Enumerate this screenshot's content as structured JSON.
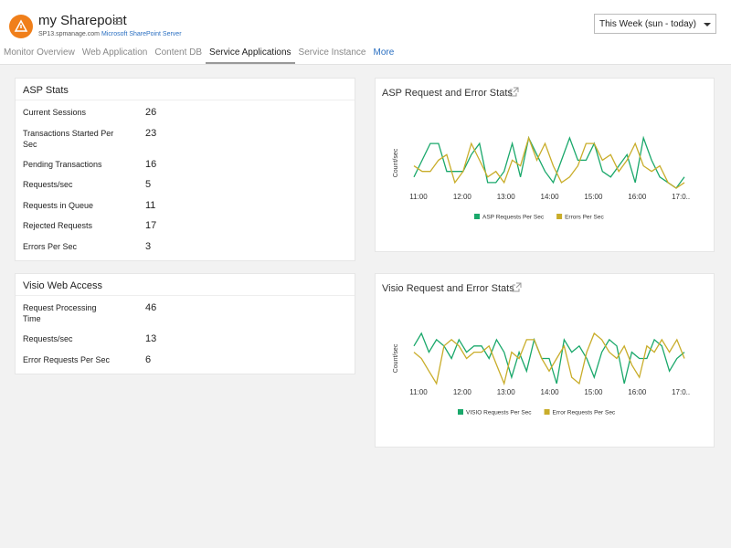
{
  "header": {
    "title": "my Sharepoint",
    "host": "SP13.spmanage.com",
    "server": "Microsoft SharePoint Server",
    "period": "This Week (sun - today)"
  },
  "tabs": [
    "Monitor Overview",
    "Web Application",
    "Content DB",
    "Service Applications",
    "Service Instance",
    "More"
  ],
  "active_tab": 3,
  "panels": [
    {
      "title": "ASP Stats",
      "rows": [
        {
          "label": "Current Sessions",
          "value": 26
        },
        {
          "label": "Transactions Started Per Sec",
          "value": 23
        },
        {
          "label": "Pending Transactions",
          "value": 16
        },
        {
          "label": "Requests/sec",
          "value": 5
        },
        {
          "label": "Requests in Queue",
          "value": 11
        },
        {
          "label": "Rejected Requests",
          "value": 17
        },
        {
          "label": "Errors Per Sec",
          "value": 3
        }
      ]
    },
    {
      "title": "Visio Web Access",
      "rows": [
        {
          "label": "Request Processing Time",
          "value": 46
        },
        {
          "label": "Requests/sec",
          "value": 13
        },
        {
          "label": "Error Requests Per Sec",
          "value": 6
        }
      ]
    }
  ],
  "chart_data": [
    {
      "type": "line",
      "title": "ASP Request and Error Stats",
      "y_label": "Count/sec",
      "xticks": [
        "11:00",
        "12:00",
        "13:00",
        "14:00",
        "15:00",
        "16:00",
        "17:0.."
      ],
      "series": [
        {
          "name": "ASP Requests Per Sec",
          "color": "#1aa86b",
          "values": [
            2,
            5,
            8,
            8,
            3,
            3,
            3,
            6,
            8,
            1,
            1,
            3,
            8,
            2,
            9,
            6,
            3,
            1,
            5,
            9,
            5,
            5,
            8,
            3,
            2,
            4,
            6,
            1,
            9,
            5,
            2,
            1,
            0,
            2
          ]
        },
        {
          "name": "Errors Per Sec",
          "color": "#c9ad2a",
          "values": [
            4,
            3,
            3,
            5,
            6,
            1,
            3,
            8,
            5,
            2,
            3,
            1,
            5,
            4,
            9,
            5,
            8,
            4,
            1,
            2,
            4,
            8,
            8,
            5,
            6,
            3,
            5,
            8,
            4,
            3,
            4,
            1,
            0,
            1
          ]
        }
      ]
    },
    {
      "type": "line",
      "title": "Visio Request and Error Stats",
      "y_label": "Count/sec",
      "xticks": [
        "11:00",
        "12:00",
        "13:00",
        "14:00",
        "15:00",
        "16:00",
        "17:0.."
      ],
      "series": [
        {
          "name": "VISIO Requests Per Sec",
          "color": "#1aa86b",
          "values": [
            7,
            9,
            6,
            8,
            7,
            5,
            8,
            6,
            7,
            7,
            5,
            8,
            6,
            2,
            6,
            3,
            8,
            5,
            5,
            1,
            8,
            6,
            7,
            5,
            2,
            6,
            8,
            7,
            1,
            6,
            5,
            5,
            8,
            7,
            3,
            5,
            6
          ]
        },
        {
          "name": "Error Requests Per Sec",
          "color": "#c9ad2a",
          "values": [
            6,
            5,
            3,
            1,
            7,
            8,
            7,
            5,
            6,
            6,
            7,
            4,
            1,
            6,
            5,
            8,
            8,
            5,
            3,
            5,
            7,
            2,
            1,
            6,
            9,
            8,
            6,
            5,
            7,
            4,
            2,
            7,
            6,
            8,
            6,
            8,
            5
          ]
        }
      ]
    }
  ]
}
